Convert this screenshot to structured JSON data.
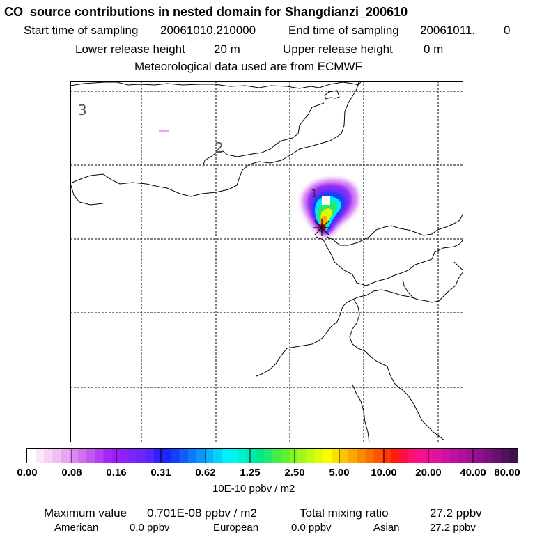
{
  "title": "CO  source contributions in nested domain for Shangdianzi_200610",
  "sampling": {
    "start_label": "Start time of sampling",
    "start_value": "20061010.210000",
    "end_label": "End time of sampling",
    "end_value": "20061011.",
    "end_extra": "0"
  },
  "release": {
    "lower_label": "Lower release height",
    "lower_value": "20 m",
    "upper_label": "Upper release height",
    "upper_value": "0 m"
  },
  "met_note": "Meteorological data used are from ECMWF",
  "map": {
    "station_name": "Shangdianzi",
    "region_labels": [
      "1",
      "2",
      "3"
    ],
    "marker": "receptor-star-marker"
  },
  "colorbar": {
    "ticks": [
      "0.00",
      "0.08",
      "0.16",
      "0.31",
      "0.62",
      "1.25",
      "2.50",
      "5.00",
      "10.00",
      "20.00",
      "40.00",
      "80.00"
    ],
    "colors": [
      "#ffffff",
      "#fbe6fb",
      "#f7d2f7",
      "#f2bef2",
      "#eaa6ee",
      "#dd88ee",
      "#d070f0",
      "#c258f2",
      "#b440f4",
      "#a628f6",
      "#9b1ef8",
      "#8b22fa",
      "#7b24fb",
      "#6a26fc",
      "#5826fd",
      "#3020fc",
      "#1828fc",
      "#1040fc",
      "#0e5cfc",
      "#0c78fc",
      "#0a96fc",
      "#08b2fc",
      "#06d0fc",
      "#00f0fc",
      "#00f4ec",
      "#00f0cc",
      "#00ecac",
      "#00e88c",
      "#20e870",
      "#40ec50",
      "#60f030",
      "#80f420",
      "#a0f818",
      "#c0fc10",
      "#e0fc08",
      "#fcfc00",
      "#fce000",
      "#fcc400",
      "#fca800",
      "#fc8c00",
      "#fc7000",
      "#fc5400",
      "#fc3800",
      "#fc1c10",
      "#fc1040",
      "#fc1070",
      "#f81090",
      "#ec1098",
      "#e010a0",
      "#d010a0",
      "#c010a0",
      "#b0109c",
      "#a01096",
      "#901090",
      "#7c1080",
      "#681070",
      "#541060",
      "#401050"
    ],
    "units": "10E-10 ppbv / m2"
  },
  "summary": {
    "max_label": "Maximum value",
    "max_value": "0.701E-08 ppbv / m2",
    "total_label": "Total mixing ratio",
    "total_value": "27.2 ppbv",
    "american_label": "American",
    "american_value": "0.0 ppbv",
    "european_label": "European",
    "european_value": "0.0 ppbv",
    "asian_label": "Asian",
    "asian_value": "27.2 ppbv"
  }
}
